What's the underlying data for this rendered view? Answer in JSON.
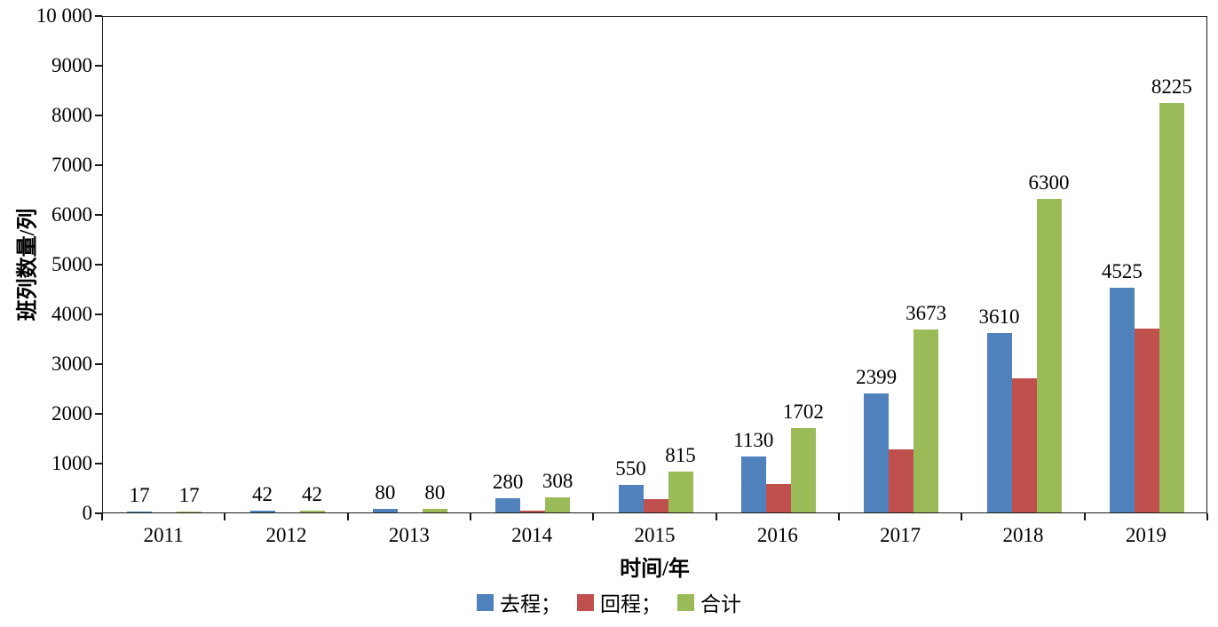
{
  "chart_data": {
    "type": "bar",
    "title": "",
    "xlabel": "时间/年",
    "ylabel": "班列数量/列",
    "categories": [
      "2011",
      "2012",
      "2013",
      "2014",
      "2015",
      "2016",
      "2017",
      "2018",
      "2019"
    ],
    "series": [
      {
        "name": "去程",
        "color": "#4f81bd",
        "values": [
          17,
          42,
          80,
          280,
          550,
          1130,
          2399,
          3610,
          4525
        ],
        "labels": [
          "17",
          "42",
          "80",
          "280",
          "550",
          "1130",
          "2399",
          "3610",
          "4525"
        ]
      },
      {
        "name": "回程",
        "color": "#c0504d",
        "values": [
          0,
          0,
          0,
          28,
          265,
          570,
          1275,
          2690,
          3700
        ],
        "labels": null
      },
      {
        "name": "合计",
        "color": "#9bbb59",
        "values": [
          17,
          42,
          80,
          308,
          815,
          1702,
          3673,
          6300,
          8225
        ],
        "labels": [
          "17",
          "42",
          "80",
          "308",
          "815",
          "1702",
          "3673",
          "6300",
          "8225"
        ]
      }
    ],
    "ylim": [
      0,
      10000
    ],
    "y_ticks": [
      {
        "value": 0,
        "label": "0"
      },
      {
        "value": 1000,
        "label": "1000"
      },
      {
        "value": 2000,
        "label": "2000"
      },
      {
        "value": 3000,
        "label": "3000"
      },
      {
        "value": 4000,
        "label": "4000"
      },
      {
        "value": 5000,
        "label": "5000"
      },
      {
        "value": 6000,
        "label": "6000"
      },
      {
        "value": 7000,
        "label": "7000"
      },
      {
        "value": 8000,
        "label": "8000"
      },
      {
        "value": 9000,
        "label": "9000"
      },
      {
        "value": 10000,
        "label": "10 000"
      }
    ],
    "grid": false,
    "legend": {
      "position": "bottom",
      "entries": [
        {
          "label": "去程；",
          "color": "#4f81bd"
        },
        {
          "label": "回程；",
          "color": "#c0504d"
        },
        {
          "label": "合计",
          "color": "#9bbb59"
        }
      ]
    }
  }
}
